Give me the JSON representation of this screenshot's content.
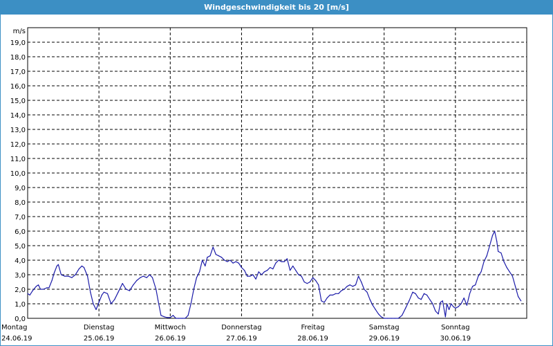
{
  "window": {
    "title": "Windgeschwindigkeit bis 20 [m/s]"
  },
  "colors": {
    "titlebar": "#3c8fc4",
    "line": "#1a1aa8",
    "grid": "#000000"
  },
  "chart_data": {
    "type": "line",
    "title": "Windgeschwindigkeit bis 20 [m/s]",
    "ylabel": "m/s",
    "xlabel": "",
    "ylim": [
      0,
      20
    ],
    "xlim": [
      0,
      7
    ],
    "y_ticks": [
      "0,0",
      "1,0",
      "2,0",
      "3,0",
      "4,0",
      "5,0",
      "6,0",
      "7,0",
      "8,0",
      "9,0",
      "10,0",
      "11,0",
      "12,0",
      "13,0",
      "14,0",
      "15,0",
      "16,0",
      "17,0",
      "18,0",
      "19,0"
    ],
    "x_days": [
      {
        "day": "Montag",
        "date": "24.06.19"
      },
      {
        "day": "Dienstag",
        "date": "25.06.19"
      },
      {
        "day": "Mittwoch",
        "date": "26.06.19"
      },
      {
        "day": "Donnerstag",
        "date": "27.06.19"
      },
      {
        "day": "Freitag",
        "date": "28.06.19"
      },
      {
        "day": "Samstag",
        "date": "29.06.19"
      },
      {
        "day": "Sonntag",
        "date": "30.06.19"
      }
    ],
    "grid": true,
    "series": [
      {
        "values": [
          [
            0.0,
            1.7
          ],
          [
            0.03,
            1.6
          ],
          [
            0.07,
            1.9
          ],
          [
            0.12,
            2.2
          ],
          [
            0.15,
            2.3
          ],
          [
            0.18,
            2.0
          ],
          [
            0.22,
            2.0
          ],
          [
            0.27,
            2.1
          ],
          [
            0.3,
            2.1
          ],
          [
            0.34,
            2.6
          ],
          [
            0.37,
            3.1
          ],
          [
            0.41,
            3.6
          ],
          [
            0.43,
            3.7
          ],
          [
            0.47,
            3.0
          ],
          [
            0.52,
            2.9
          ],
          [
            0.57,
            2.9
          ],
          [
            0.62,
            2.8
          ],
          [
            0.67,
            3.0
          ],
          [
            0.72,
            3.4
          ],
          [
            0.76,
            3.6
          ],
          [
            0.79,
            3.5
          ],
          [
            0.84,
            2.9
          ],
          [
            0.88,
            1.8
          ],
          [
            0.92,
            1.0
          ],
          [
            0.96,
            0.6
          ],
          [
            1.0,
            1.1
          ],
          [
            1.04,
            1.6
          ],
          [
            1.07,
            1.8
          ],
          [
            1.12,
            1.7
          ],
          [
            1.17,
            1.0
          ],
          [
            1.22,
            1.3
          ],
          [
            1.27,
            1.8
          ],
          [
            1.33,
            2.4
          ],
          [
            1.38,
            2.0
          ],
          [
            1.43,
            1.9
          ],
          [
            1.48,
            2.3
          ],
          [
            1.53,
            2.6
          ],
          [
            1.58,
            2.8
          ],
          [
            1.62,
            2.9
          ],
          [
            1.67,
            2.8
          ],
          [
            1.71,
            3.0
          ],
          [
            1.75,
            2.8
          ],
          [
            1.8,
            2.0
          ],
          [
            1.83,
            1.2
          ],
          [
            1.87,
            0.2
          ],
          [
            1.92,
            0.1
          ],
          [
            1.96,
            0.05
          ],
          [
            2.0,
            0.05
          ],
          [
            2.04,
            0.2
          ],
          [
            2.08,
            0.0
          ],
          [
            2.12,
            0.0
          ],
          [
            2.17,
            0.0
          ],
          [
            2.21,
            0.0
          ],
          [
            2.25,
            0.2
          ],
          [
            2.29,
            1.0
          ],
          [
            2.33,
            2.0
          ],
          [
            2.37,
            2.8
          ],
          [
            2.41,
            3.2
          ],
          [
            2.45,
            4.0
          ],
          [
            2.49,
            3.6
          ],
          [
            2.52,
            4.2
          ],
          [
            2.56,
            4.3
          ],
          [
            2.6,
            4.9
          ],
          [
            2.64,
            4.4
          ],
          [
            2.68,
            4.3
          ],
          [
            2.72,
            4.2
          ],
          [
            2.76,
            4.0
          ],
          [
            2.8,
            3.9
          ],
          [
            2.84,
            4.0
          ],
          [
            2.88,
            3.8
          ],
          [
            2.92,
            3.9
          ],
          [
            2.96,
            3.8
          ],
          [
            3.0,
            3.5
          ],
          [
            3.04,
            3.3
          ],
          [
            3.08,
            2.9
          ],
          [
            3.12,
            2.9
          ],
          [
            3.16,
            3.0
          ],
          [
            3.2,
            2.7
          ],
          [
            3.24,
            3.2
          ],
          [
            3.28,
            3.0
          ],
          [
            3.32,
            3.2
          ],
          [
            3.36,
            3.3
          ],
          [
            3.4,
            3.5
          ],
          [
            3.44,
            3.4
          ],
          [
            3.48,
            3.8
          ],
          [
            3.52,
            4.0
          ],
          [
            3.56,
            3.9
          ],
          [
            3.6,
            3.9
          ],
          [
            3.64,
            4.1
          ],
          [
            3.68,
            3.3
          ],
          [
            3.72,
            3.6
          ],
          [
            3.76,
            3.3
          ],
          [
            3.8,
            3.0
          ],
          [
            3.84,
            2.9
          ],
          [
            3.88,
            2.5
          ],
          [
            3.92,
            2.4
          ],
          [
            3.96,
            2.5
          ],
          [
            4.0,
            2.8
          ],
          [
            4.04,
            2.6
          ],
          [
            4.08,
            2.3
          ],
          [
            4.12,
            1.2
          ],
          [
            4.16,
            1.1
          ],
          [
            4.2,
            1.4
          ],
          [
            4.24,
            1.6
          ],
          [
            4.28,
            1.6
          ],
          [
            4.32,
            1.7
          ],
          [
            4.36,
            1.7
          ],
          [
            4.4,
            1.9
          ],
          [
            4.44,
            2.0
          ],
          [
            4.48,
            2.2
          ],
          [
            4.52,
            2.3
          ],
          [
            4.56,
            2.2
          ],
          [
            4.6,
            2.3
          ],
          [
            4.64,
            2.9
          ],
          [
            4.68,
            2.5
          ],
          [
            4.72,
            2.0
          ],
          [
            4.76,
            1.8
          ],
          [
            4.8,
            1.3
          ],
          [
            4.84,
            0.9
          ],
          [
            4.88,
            0.6
          ],
          [
            4.92,
            0.3
          ],
          [
            4.96,
            0.1
          ],
          [
            5.0,
            0.0
          ],
          [
            5.05,
            0.0
          ],
          [
            5.1,
            0.0
          ],
          [
            5.15,
            0.0
          ],
          [
            5.2,
            0.0
          ],
          [
            5.25,
            0.2
          ],
          [
            5.3,
            0.7
          ],
          [
            5.35,
            1.2
          ],
          [
            5.4,
            1.8
          ],
          [
            5.44,
            1.7
          ],
          [
            5.48,
            1.4
          ],
          [
            5.52,
            1.3
          ],
          [
            5.56,
            1.7
          ],
          [
            5.6,
            1.6
          ],
          [
            5.64,
            1.3
          ],
          [
            5.68,
            1.0
          ],
          [
            5.72,
            0.5
          ],
          [
            5.76,
            0.3
          ],
          [
            5.79,
            1.1
          ],
          [
            5.82,
            1.2
          ],
          [
            5.86,
            0.1
          ],
          [
            5.88,
            1.0
          ],
          [
            5.91,
            0.6
          ],
          [
            5.94,
            1.0
          ],
          [
            5.97,
            0.8
          ],
          [
            6.0,
            0.7
          ],
          [
            6.04,
            0.8
          ],
          [
            6.08,
            1.0
          ],
          [
            6.12,
            1.4
          ],
          [
            6.16,
            0.9
          ],
          [
            6.2,
            1.7
          ],
          [
            6.24,
            2.2
          ],
          [
            6.28,
            2.3
          ],
          [
            6.32,
            2.9
          ],
          [
            6.36,
            3.2
          ],
          [
            6.4,
            3.9
          ],
          [
            6.44,
            4.3
          ],
          [
            6.48,
            5.0
          ],
          [
            6.52,
            5.7
          ],
          [
            6.55,
            6.0
          ],
          [
            6.58,
            5.3
          ],
          [
            6.6,
            4.6
          ],
          [
            6.64,
            4.5
          ],
          [
            6.68,
            3.9
          ],
          [
            6.72,
            3.5
          ],
          [
            6.76,
            3.2
          ],
          [
            6.8,
            2.9
          ],
          [
            6.84,
            2.2
          ],
          [
            6.88,
            1.5
          ],
          [
            6.92,
            1.2
          ]
        ]
      }
    ]
  }
}
